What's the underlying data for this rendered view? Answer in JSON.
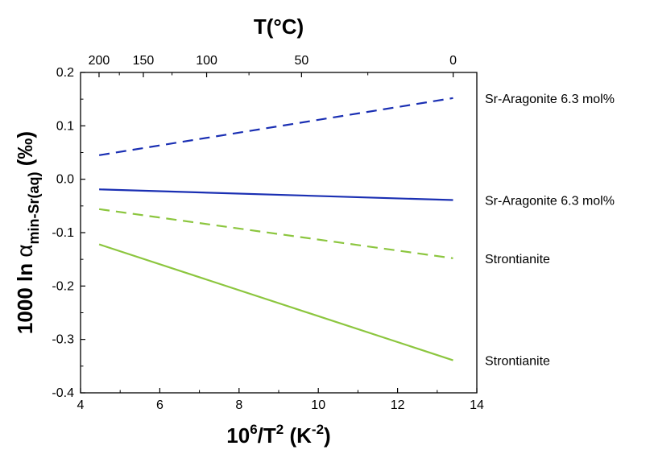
{
  "chart_data": {
    "type": "line",
    "title": "",
    "xlabel": {
      "base": "10",
      "exp1": "6",
      "mid": "/T",
      "exp2": "2",
      "unit_open": " (K",
      "unit_exp": "-2",
      "unit_close": ")"
    },
    "ylabel": {
      "prefix": "1000 ln ",
      "symbol": "α",
      "subscript": "min-Sr(aq)",
      "suffix": " (‰)"
    },
    "top_axis_label": "T(°C)",
    "xlim": [
      4,
      14
    ],
    "ylim": [
      -0.4,
      0.2
    ],
    "xticks": [
      4,
      6,
      8,
      10,
      12,
      14
    ],
    "xtick_labels": [
      "4",
      "6",
      "8",
      "10",
      "12",
      "14"
    ],
    "yticks": [
      -0.4,
      -0.3,
      -0.2,
      -0.1,
      0.0,
      0.1,
      0.2
    ],
    "ytick_labels": [
      "-0.4",
      "-0.3",
      "-0.2",
      "-0.1",
      "0.0",
      "0.1",
      "0.2"
    ],
    "top_ticks": [
      {
        "label": "200",
        "celsius": 200
      },
      {
        "label": "150",
        "celsius": 150
      },
      {
        "label": "100",
        "celsius": 100
      },
      {
        "label": "50",
        "celsius": 50
      },
      {
        "label": "0",
        "celsius": 0
      }
    ],
    "grid": false,
    "series": [
      {
        "name": "Sr-Aragonite 6.3 mol%",
        "color": "#1a2fb3",
        "style": "dashed",
        "x": [
          4.47,
          13.4
        ],
        "y": [
          0.045,
          0.152
        ]
      },
      {
        "name": "Sr-Aragonite 6.3 mol%",
        "color": "#1a2fb3",
        "style": "solid",
        "x": [
          4.47,
          13.4
        ],
        "y": [
          -0.019,
          -0.039
        ]
      },
      {
        "name": "Strontianite",
        "color": "#8cc63f",
        "style": "dashed",
        "x": [
          4.47,
          13.4
        ],
        "y": [
          -0.056,
          -0.148
        ]
      },
      {
        "name": "Strontianite",
        "color": "#8cc63f",
        "style": "solid",
        "x": [
          4.47,
          13.4
        ],
        "y": [
          -0.122,
          -0.339
        ]
      }
    ]
  }
}
